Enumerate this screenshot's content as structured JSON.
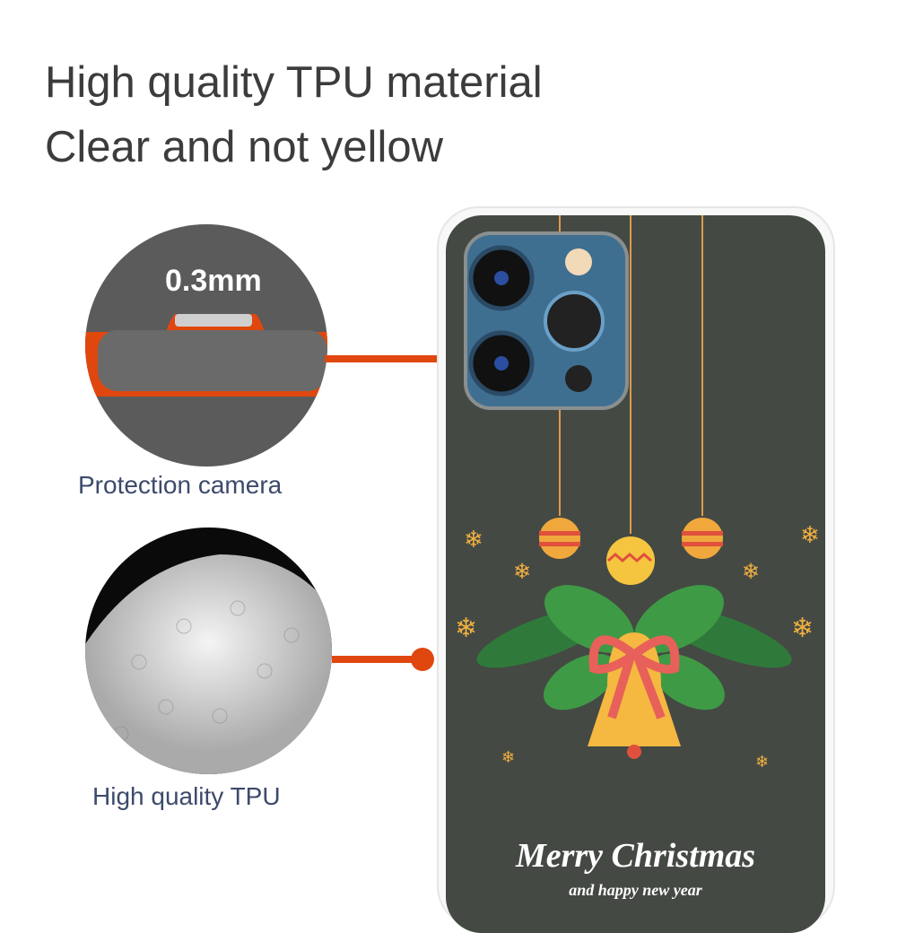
{
  "headline": {
    "line1": "High quality TPU material",
    "line2": "Clear and not yellow"
  },
  "callouts": [
    {
      "thickness": "0.3mm",
      "caption": "Protection camera"
    },
    {
      "caption": "High quality TPU"
    }
  ],
  "case_print": {
    "title": "Merry Christmas",
    "subtitle": "and happy new year"
  },
  "colors": {
    "accent": "#e0470e",
    "case_back": "#444944",
    "caption": "#3d4a6b"
  }
}
